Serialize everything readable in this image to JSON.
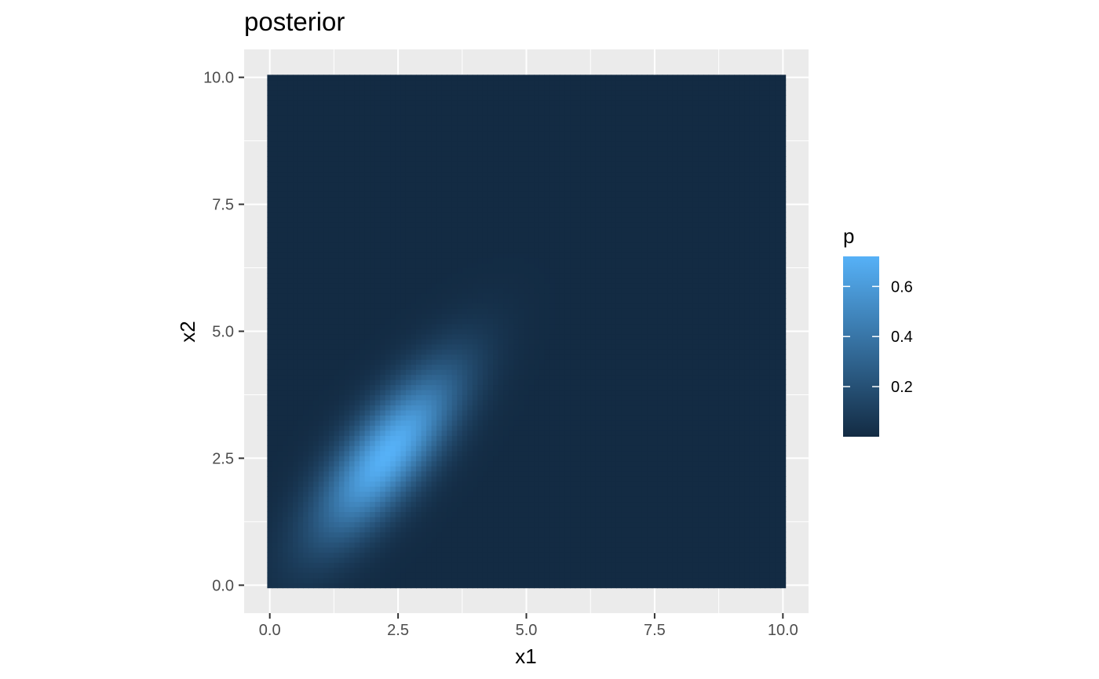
{
  "chart_data": {
    "type": "heatmap",
    "title": "posterior",
    "xlabel": "x1",
    "ylabel": "x2",
    "xlim": [
      -0.5,
      10.5
    ],
    "ylim": [
      -0.55,
      10.55
    ],
    "x_ticks": [
      0.0,
      2.5,
      5.0,
      7.5,
      10.0
    ],
    "y_ticks": [
      0.0,
      2.5,
      5.0,
      7.5,
      10.0
    ],
    "x_tick_labels": [
      "0.0",
      "2.5",
      "5.0",
      "7.5",
      "10.0"
    ],
    "y_tick_labels": [
      "0.0",
      "2.5",
      "5.0",
      "7.5",
      "10.0"
    ],
    "grid": true,
    "panel_background": "#ebebeb",
    "x_range": [
      0,
      10
    ],
    "y_range": [
      0,
      10
    ],
    "grid_resolution": 101,
    "density": {
      "distribution": "bivariate normal",
      "peak_value": 0.72,
      "mean": [
        2.3,
        2.6
      ],
      "sd": [
        0.95,
        1.15
      ],
      "correlation": 0.75
    },
    "legend": {
      "title": "p",
      "position": "right",
      "min": 0.0,
      "max": 0.72,
      "breaks": [
        0.2,
        0.4,
        0.6
      ],
      "labels": [
        "0.2",
        "0.4",
        "0.6"
      ],
      "low_color": "#132b43",
      "high_color": "#56b1f7"
    }
  }
}
